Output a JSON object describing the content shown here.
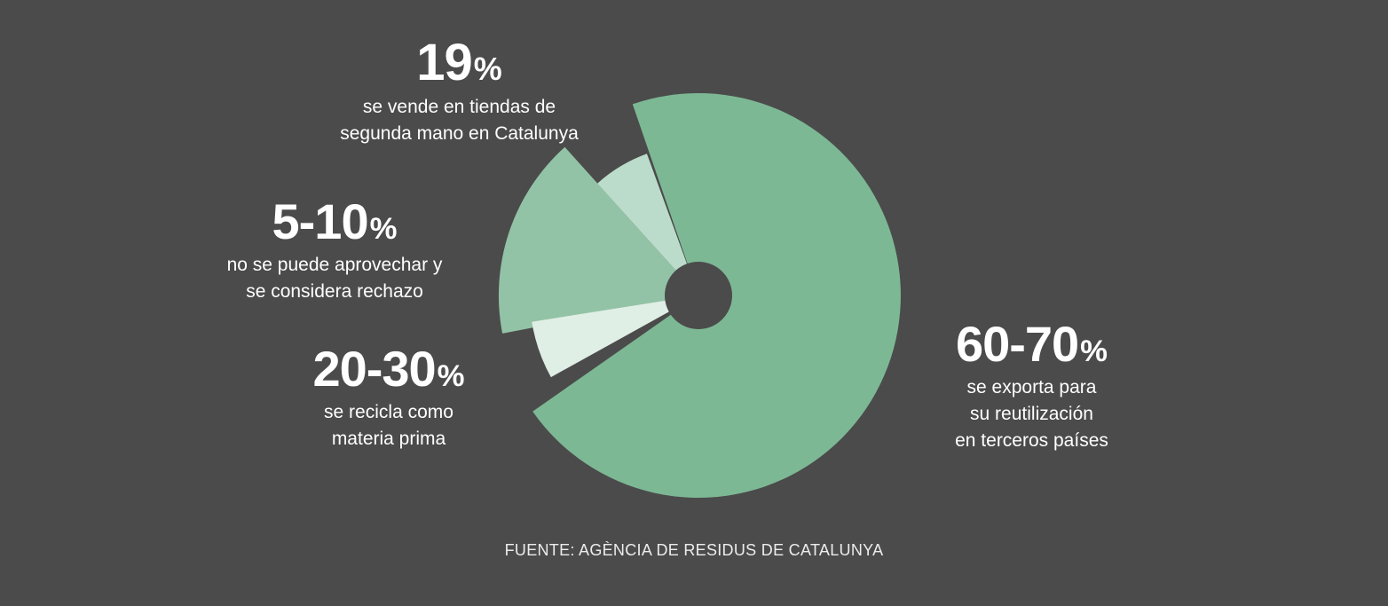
{
  "chart_data": {
    "type": "pie",
    "title": "",
    "slices": [
      {
        "value_label": "19",
        "description": [
          "se vende en tiendas de",
          "segunda mano en Catalunya"
        ],
        "color": "#bcdccb"
      },
      {
        "value_label": "5-10",
        "description": [
          "no se puede aprovechar y",
          "se considera rechazo"
        ],
        "color": "#93c3a6"
      },
      {
        "value_label": "20-30",
        "description": [
          "se recicla como",
          "materia prima"
        ],
        "color": "#e0efe5"
      },
      {
        "value_label": "60-70",
        "description": [
          "se exporta para",
          "su reutilización",
          "en terceros países"
        ],
        "color": "#7db895"
      }
    ],
    "percent_sign": "%",
    "source": "FUENTE: AGÈNCIA DE RESIDUS DE CATALUNYA"
  }
}
